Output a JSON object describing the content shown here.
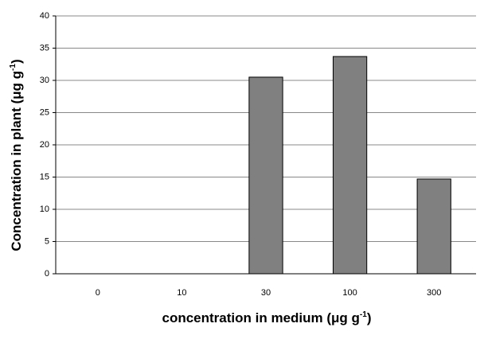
{
  "chart_data": {
    "type": "bar",
    "categories": [
      "0",
      "10",
      "30",
      "100",
      "300"
    ],
    "values": [
      0,
      0,
      30.5,
      33.7,
      14.7
    ],
    "color": "#808080",
    "ylim": [
      0,
      40
    ],
    "yticks": [
      0,
      5,
      10,
      15,
      20,
      25,
      30,
      35,
      40
    ],
    "grid": true,
    "xlabel": {
      "text": "concentration in medium (μg g",
      "sup": "-1",
      "end": ")"
    },
    "ylabel": {
      "text": "Concentration in plant (μg g",
      "sup": "-1",
      "end": ")"
    }
  }
}
